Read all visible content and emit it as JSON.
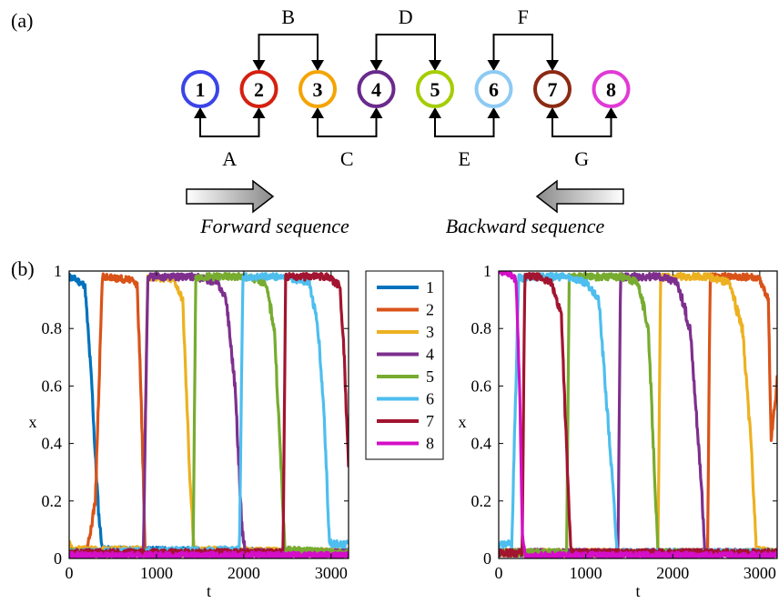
{
  "panel_a": {
    "label": "(a)",
    "nodes": [
      {
        "id": "1",
        "color": "#3b44e8"
      },
      {
        "id": "2",
        "color": "#d42010"
      },
      {
        "id": "3",
        "color": "#f4a400"
      },
      {
        "id": "4",
        "color": "#6a2a8c"
      },
      {
        "id": "5",
        "color": "#a5cd00"
      },
      {
        "id": "6",
        "color": "#8ccaf4"
      },
      {
        "id": "7",
        "color": "#8b2a12"
      },
      {
        "id": "8",
        "color": "#e03ad6"
      }
    ],
    "top_links": [
      {
        "label": "B",
        "from": "2",
        "to": "3"
      },
      {
        "label": "D",
        "from": "4",
        "to": "5"
      },
      {
        "label": "F",
        "from": "6",
        "to": "7"
      }
    ],
    "bottom_links": [
      {
        "label": "A",
        "from": "1",
        "to": "2"
      },
      {
        "label": "C",
        "from": "3",
        "to": "4"
      },
      {
        "label": "E",
        "from": "5",
        "to": "6"
      },
      {
        "label": "G",
        "from": "7",
        "to": "8"
      }
    ],
    "forward_label": "Forward sequence",
    "backward_label": "Backward sequence"
  },
  "panel_b": {
    "label": "(b)",
    "legend": [
      "1",
      "2",
      "3",
      "4",
      "5",
      "6",
      "7",
      "8"
    ]
  },
  "chart_data": [
    {
      "type": "line",
      "xlabel": "t",
      "ylabel": "x",
      "xlim": [
        0,
        3200
      ],
      "ylim": [
        0,
        1
      ],
      "xticks": [
        "0",
        "1000",
        "2000",
        "3000"
      ],
      "yticks": [
        "0",
        "0.2",
        "0.4",
        "0.6",
        "0.8",
        "1"
      ],
      "series": [
        {
          "name": "1",
          "color": "#0072bd",
          "x": [
            0,
            80,
            180,
            260,
            300,
            340,
            380,
            3200
          ],
          "y": [
            0.98,
            0.97,
            0.95,
            0.6,
            0.35,
            0.15,
            0.03,
            0.02
          ]
        },
        {
          "name": "2",
          "color": "#d95319",
          "x": [
            0,
            200,
            300,
            380,
            700,
            780,
            830,
            870,
            900,
            3200
          ],
          "y": [
            0.02,
            0.02,
            0.2,
            0.98,
            0.97,
            0.95,
            0.5,
            0.03,
            0.02,
            0.02
          ]
        },
        {
          "name": "3",
          "color": "#edb120",
          "x": [
            0,
            30,
            380,
            850,
            900,
            1200,
            1300,
            1380,
            1430,
            3200
          ],
          "y": [
            0.07,
            0.03,
            0.03,
            0.03,
            0.98,
            0.97,
            0.9,
            0.3,
            0.03,
            0.02
          ]
        },
        {
          "name": "4",
          "color": "#7e2f8e",
          "x": [
            0,
            850,
            900,
            1450,
            1700,
            1800,
            1900,
            1980,
            2020,
            3200
          ],
          "y": [
            0.02,
            0.02,
            0.98,
            0.98,
            0.96,
            0.9,
            0.6,
            0.1,
            0.02,
            0.02
          ]
        },
        {
          "name": "5",
          "color": "#77ac30",
          "x": [
            0,
            1420,
            1450,
            1980,
            2250,
            2350,
            2430,
            2470,
            3200
          ],
          "y": [
            0.02,
            0.02,
            0.98,
            0.98,
            0.96,
            0.8,
            0.3,
            0.03,
            0.02
          ]
        },
        {
          "name": "6",
          "color": "#4dbeee",
          "x": [
            0,
            1950,
            1990,
            2470,
            2750,
            2850,
            2920,
            2980,
            3010,
            3200
          ],
          "y": [
            0.02,
            0.03,
            0.98,
            0.98,
            0.96,
            0.8,
            0.5,
            0.06,
            0.05,
            0.05
          ]
        },
        {
          "name": "7",
          "color": "#a2142f",
          "x": [
            0,
            2450,
            2480,
            2950,
            3100,
            3150,
            3200
          ],
          "y": [
            0.02,
            0.02,
            0.98,
            0.98,
            0.95,
            0.7,
            0.33
          ]
        },
        {
          "name": "8",
          "color": "#d40fc7",
          "x": [
            0,
            3200
          ],
          "y": [
            0.01,
            0.01
          ]
        }
      ]
    },
    {
      "type": "line",
      "xlabel": "t",
      "ylabel": "x",
      "xlim": [
        0,
        3200
      ],
      "ylim": [
        0,
        1
      ],
      "xticks": [
        "0",
        "1000",
        "2000",
        "3000"
      ],
      "yticks": [
        "0",
        "0.2",
        "0.4",
        "0.6",
        "0.8",
        "1"
      ],
      "series": [
        {
          "name": "1",
          "color": "#0072bd",
          "x": [
            0,
            3200
          ],
          "y": [
            0.02,
            0.02
          ]
        },
        {
          "name": "2",
          "color": "#d95319",
          "x": [
            0,
            2400,
            2430,
            2900,
            3000,
            3100,
            3130,
            3200
          ],
          "y": [
            0.02,
            0.02,
            0.98,
            0.98,
            0.97,
            0.9,
            0.4,
            0.62
          ]
        },
        {
          "name": "3",
          "color": "#edb120",
          "x": [
            0,
            1830,
            1860,
            2400,
            2650,
            2800,
            2900,
            2960,
            3200
          ],
          "y": [
            0.02,
            0.02,
            0.98,
            0.98,
            0.96,
            0.8,
            0.4,
            0.03,
            0.02
          ]
        },
        {
          "name": "4",
          "color": "#7e2f8e",
          "x": [
            0,
            1370,
            1400,
            1860,
            2050,
            2200,
            2320,
            2370,
            3200
          ],
          "y": [
            0.02,
            0.02,
            0.98,
            0.98,
            0.96,
            0.8,
            0.3,
            0.02,
            0.02
          ]
        },
        {
          "name": "5",
          "color": "#77ac30",
          "x": [
            0,
            780,
            810,
            1400,
            1600,
            1720,
            1790,
            1830,
            3200
          ],
          "y": [
            0.02,
            0.02,
            0.98,
            0.98,
            0.96,
            0.8,
            0.3,
            0.02,
            0.02
          ]
        },
        {
          "name": "6",
          "color": "#4dbeee",
          "x": [
            0,
            150,
            230,
            270,
            300,
            800,
            1000,
            1150,
            1300,
            1360,
            3200
          ],
          "y": [
            0.05,
            0.05,
            0.98,
            0.97,
            0.98,
            0.98,
            0.96,
            0.9,
            0.3,
            0.02,
            0.02
          ]
        },
        {
          "name": "7",
          "color": "#a2142f",
          "x": [
            0,
            270,
            300,
            450,
            600,
            720,
            790,
            830,
            3200
          ],
          "y": [
            0.02,
            0.02,
            0.98,
            0.98,
            0.96,
            0.85,
            0.3,
            0.02,
            0.02
          ]
        },
        {
          "name": "8",
          "color": "#d40fc7",
          "x": [
            0,
            120,
            200,
            240,
            270,
            300,
            3200
          ],
          "y": [
            1.0,
            0.99,
            0.97,
            0.6,
            0.1,
            0.01,
            0.01
          ]
        }
      ]
    }
  ]
}
